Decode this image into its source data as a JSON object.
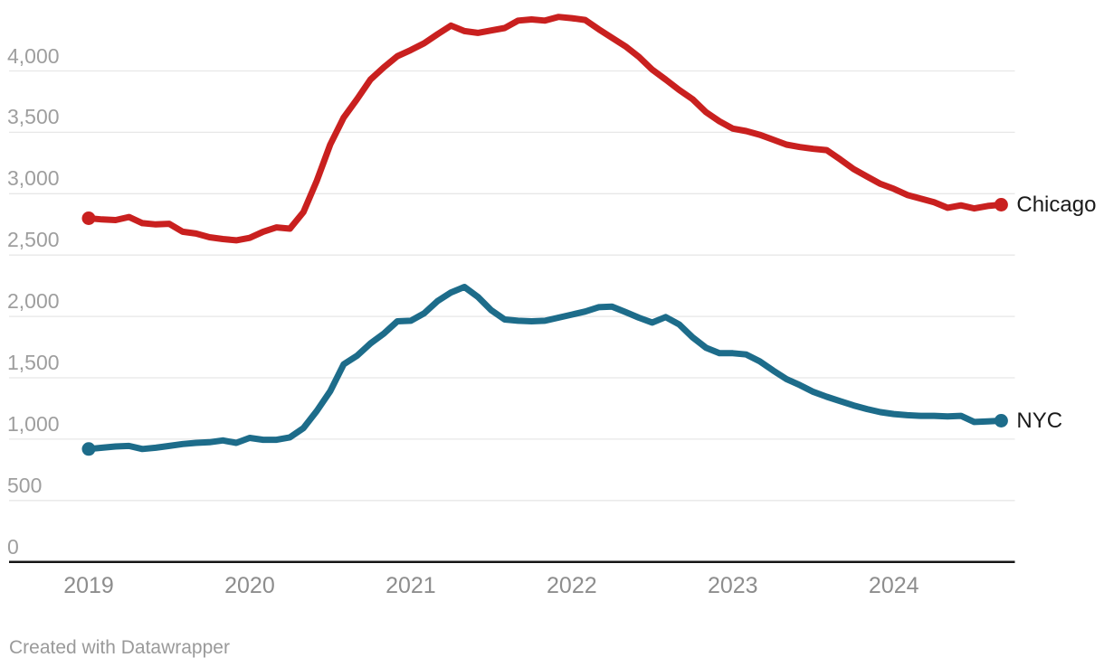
{
  "chart_data": {
    "type": "line",
    "title": "",
    "x_unit": "month",
    "months": [
      "2019-01",
      "2019-02",
      "2019-03",
      "2019-04",
      "2019-05",
      "2019-06",
      "2019-07",
      "2019-08",
      "2019-09",
      "2019-10",
      "2019-11",
      "2019-12",
      "2020-01",
      "2020-02",
      "2020-03",
      "2020-04",
      "2020-05",
      "2020-06",
      "2020-07",
      "2020-08",
      "2020-09",
      "2020-10",
      "2020-11",
      "2020-12",
      "2021-01",
      "2021-02",
      "2021-03",
      "2021-04",
      "2021-05",
      "2021-06",
      "2021-07",
      "2021-08",
      "2021-09",
      "2021-10",
      "2021-11",
      "2021-12",
      "2022-01",
      "2022-02",
      "2022-03",
      "2022-04",
      "2022-05",
      "2022-06",
      "2022-07",
      "2022-08",
      "2022-09",
      "2022-10",
      "2022-11",
      "2022-12",
      "2023-01",
      "2023-02",
      "2023-03",
      "2023-04",
      "2023-05",
      "2023-06",
      "2023-07",
      "2023-08",
      "2023-09",
      "2023-10",
      "2023-11",
      "2023-12",
      "2024-01",
      "2024-02",
      "2024-03",
      "2024-04",
      "2024-05",
      "2024-06",
      "2024-07",
      "2024-08",
      "2024-09"
    ],
    "series": [
      {
        "name": "Chicago",
        "color": "#c9201f",
        "values": [
          2800,
          2790,
          2785,
          2810,
          2760,
          2750,
          2755,
          2690,
          2675,
          2645,
          2630,
          2620,
          2640,
          2690,
          2725,
          2715,
          2850,
          3105,
          3400,
          3620,
          3770,
          3930,
          4030,
          4120,
          4170,
          4225,
          4300,
          4370,
          4325,
          4310,
          4330,
          4350,
          4410,
          4420,
          4410,
          4440,
          4430,
          4415,
          4340,
          4270,
          4200,
          4115,
          4010,
          3930,
          3845,
          3770,
          3665,
          3590,
          3530,
          3510,
          3480,
          3440,
          3400,
          3380,
          3365,
          3355,
          3280,
          3200,
          3140,
          3080,
          3040,
          2990,
          2960,
          2930,
          2885,
          2905,
          2880,
          2900,
          2910
        ]
      },
      {
        "name": "NYC",
        "color": "#1d6c8a",
        "values": [
          920,
          930,
          940,
          945,
          920,
          930,
          945,
          960,
          970,
          975,
          990,
          970,
          1010,
          995,
          995,
          1015,
          1090,
          1230,
          1390,
          1610,
          1680,
          1780,
          1860,
          1960,
          1965,
          2025,
          2125,
          2195,
          2240,
          2160,
          2050,
          1975,
          1965,
          1960,
          1965,
          1990,
          2015,
          2040,
          2075,
          2080,
          2035,
          1990,
          1950,
          1995,
          1935,
          1830,
          1745,
          1700,
          1700,
          1690,
          1635,
          1560,
          1490,
          1440,
          1385,
          1345,
          1310,
          1275,
          1245,
          1220,
          1205,
          1195,
          1190,
          1190,
          1185,
          1190,
          1140,
          1145,
          1150
        ]
      }
    ],
    "y_axis": {
      "ticks": [
        0,
        500,
        1000,
        1500,
        2000,
        2500,
        3000,
        3500,
        4000
      ],
      "tick_labels": [
        "0",
        "500",
        "1,000",
        "1,500",
        "2,000",
        "2,500",
        "3,000",
        "3,500",
        "4,000"
      ],
      "ylim": [
        0,
        4500
      ],
      "grid": true
    },
    "x_axis": {
      "tick_labels": [
        "2019",
        "2020",
        "2021",
        "2022",
        "2023",
        "2024"
      ]
    },
    "legend_position": "direct-labels-right"
  },
  "style": {
    "grid_color": "#e7e7e7",
    "baseline_color": "#161616",
    "y_label_color": "#9e9e9e",
    "x_label_color": "#8d8d8d",
    "series_label_color": "#1a1a1a",
    "background": "#ffffff"
  },
  "footer": {
    "credit": "Created with Datawrapper"
  }
}
